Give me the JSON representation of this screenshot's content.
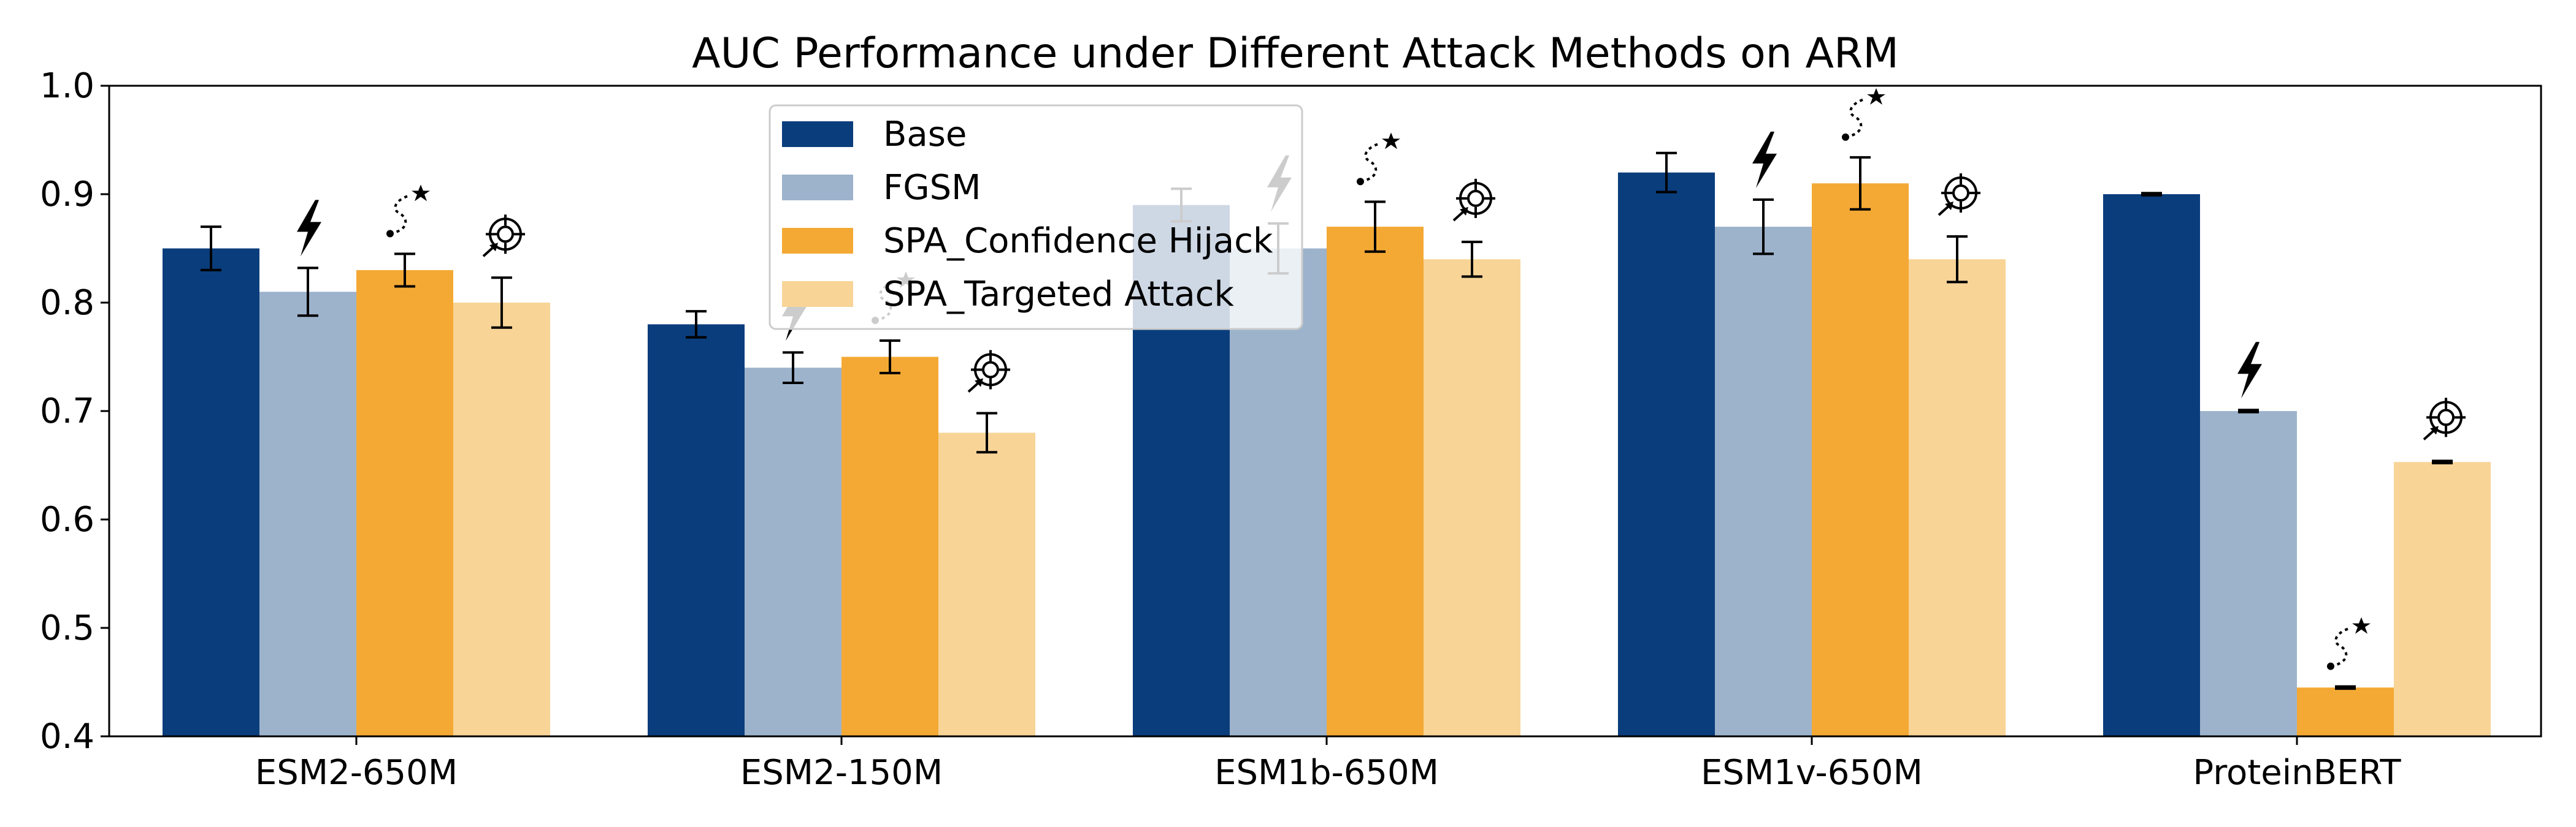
{
  "chart_data": {
    "type": "bar",
    "title": "AUC Performance under Different Attack Methods on ARM",
    "xlabel": "",
    "ylabel": "",
    "ylim": [
      0.4,
      1.0
    ],
    "yticks": [
      "0.4",
      "0.5",
      "0.6",
      "0.7",
      "0.8",
      "0.9",
      "1.0"
    ],
    "categories": [
      "ESM2-650M",
      "ESM2-150M",
      "ESM1b-650M",
      "ESM1v-650M",
      "ProteinBERT"
    ],
    "series": [
      {
        "name": "Base",
        "color": "#0a3d7c",
        "icon": "none",
        "values": [
          0.85,
          0.78,
          0.89,
          0.92,
          0.9
        ],
        "errors": [
          0.02,
          0.012,
          0.015,
          0.018,
          0.001
        ]
      },
      {
        "name": "FGSM",
        "color": "#9db3cc",
        "icon": "lightning-icon",
        "values": [
          0.81,
          0.74,
          0.85,
          0.87,
          0.7
        ],
        "errors": [
          0.022,
          0.014,
          0.023,
          0.025,
          0.001
        ]
      },
      {
        "name": "SPA_Confidence Hijack",
        "color": "#f4a934",
        "icon": "path-star-icon",
        "values": [
          0.83,
          0.75,
          0.87,
          0.91,
          0.445
        ],
        "errors": [
          0.015,
          0.015,
          0.023,
          0.024,
          0.001
        ]
      },
      {
        "name": "SPA_Targeted Attack",
        "color": "#f8d497",
        "icon": "target-icon",
        "values": [
          0.8,
          0.68,
          0.84,
          0.84,
          0.653
        ],
        "errors": [
          0.023,
          0.018,
          0.016,
          0.021,
          0.001
        ]
      }
    ],
    "legend_position": "upper-center"
  }
}
